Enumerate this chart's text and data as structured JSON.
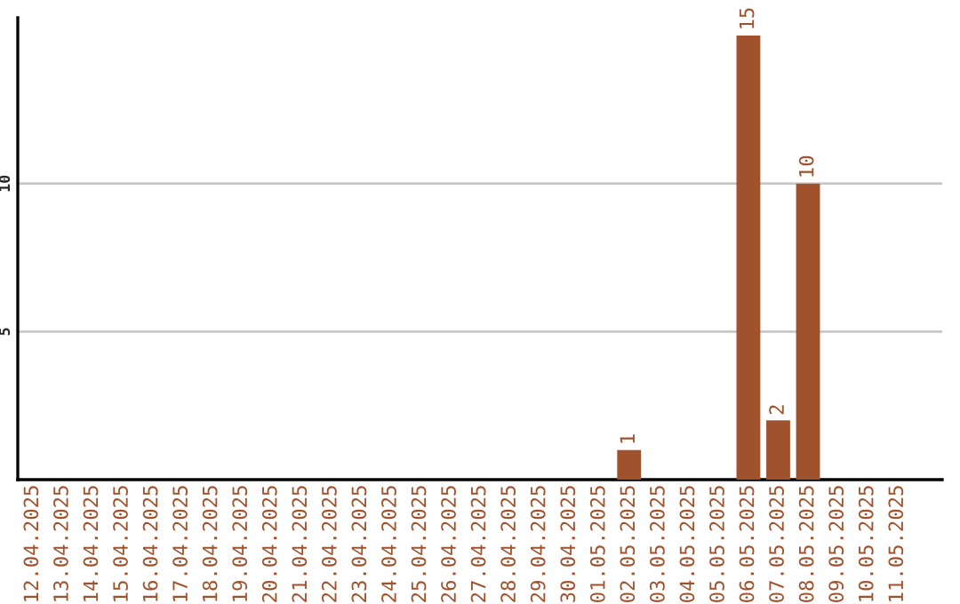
{
  "chart_data": {
    "type": "bar",
    "categories": [
      "12.04.2025",
      "13.04.2025",
      "14.04.2025",
      "15.04.2025",
      "16.04.2025",
      "17.04.2025",
      "18.04.2025",
      "19.04.2025",
      "20.04.2025",
      "21.04.2025",
      "22.04.2025",
      "23.04.2025",
      "24.04.2025",
      "25.04.2025",
      "26.04.2025",
      "27.04.2025",
      "28.04.2025",
      "29.04.2025",
      "30.04.2025",
      "01.05.2025",
      "02.05.2025",
      "03.05.2025",
      "04.05.2025",
      "05.05.2025",
      "06.05.2025",
      "07.05.2025",
      "08.05.2025",
      "09.05.2025",
      "10.05.2025",
      "11.05.2025"
    ],
    "values": [
      0,
      0,
      0,
      0,
      0,
      0,
      0,
      0,
      0,
      0,
      0,
      0,
      0,
      0,
      0,
      0,
      0,
      0,
      0,
      0,
      1,
      0,
      0,
      0,
      15,
      2,
      10,
      0,
      0,
      0
    ],
    "value_labels": [
      null,
      null,
      null,
      null,
      null,
      null,
      null,
      null,
      null,
      null,
      null,
      null,
      null,
      null,
      null,
      null,
      null,
      null,
      null,
      null,
      "1",
      null,
      null,
      null,
      "15",
      "2",
      "10",
      null,
      null,
      null
    ],
    "color": "#a0522d",
    "ylim": [
      0,
      15.6
    ],
    "yticks": [
      5,
      10
    ],
    "grid": "y",
    "legend": false
  }
}
